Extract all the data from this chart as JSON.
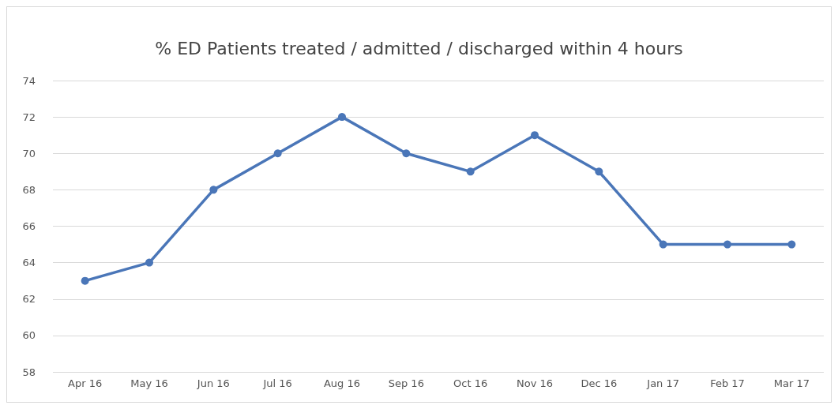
{
  "chart_data": {
    "type": "line",
    "title": "% ED Patients treated / admitted / discharged within 4 hours",
    "categories": [
      "Apr 16",
      "May 16",
      "Jun 16",
      "Jul 16",
      "Aug 16",
      "Sep 16",
      "Oct 16",
      "Nov 16",
      "Dec 16",
      "Jan 17",
      "Feb 17",
      "Mar 17"
    ],
    "series": [
      {
        "color": "#4a76b8",
        "values": [
          63,
          64,
          68,
          70,
          72,
          70,
          69,
          71,
          69,
          65,
          65,
          65
        ]
      }
    ],
    "ylim": [
      58,
      74
    ],
    "yticks": [
      58,
      60,
      62,
      64,
      66,
      68,
      70,
      72,
      74
    ],
    "grid": "y",
    "marker": "circle",
    "line_style": "solid"
  }
}
